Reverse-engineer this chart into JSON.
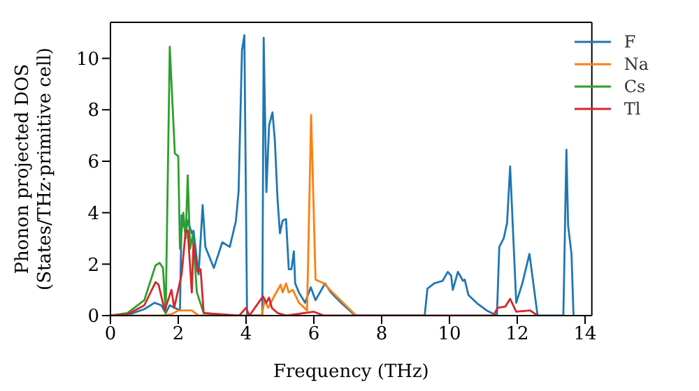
{
  "chart_data": {
    "type": "line",
    "xlabel": "Frequency (THz)",
    "ylabel": "Phonon projected DOS\n(States/THz·primitive cell)",
    "xlim": [
      0,
      14.2
    ],
    "xticks": [
      0,
      2,
      4,
      6,
      8,
      10,
      12,
      14
    ],
    "ylim": [
      0,
      11.4
    ],
    "yticks": [
      0,
      2,
      4,
      6,
      8,
      10
    ],
    "legend": "top right",
    "marker": "none",
    "line_style": "solid",
    "series": [
      {
        "name": "F",
        "color": "#1f77b4",
        "x": [
          0,
          0.5,
          1.0,
          1.3,
          1.5,
          1.63,
          1.75,
          1.9,
          2.05,
          2.1,
          2.22,
          2.28,
          2.4,
          2.45,
          2.6,
          2.72,
          2.8,
          3.05,
          3.3,
          3.52,
          3.7,
          3.78,
          3.88,
          3.95,
          4.03,
          4.48,
          4.52,
          4.6,
          4.68,
          4.78,
          4.85,
          4.93,
          5.0,
          5.08,
          5.18,
          5.26,
          5.34,
          5.41,
          5.45,
          5.56,
          5.74,
          5.91,
          6.05,
          6.33,
          6.5,
          6.8,
          7.22,
          9.27,
          9.35,
          9.55,
          9.8,
          9.95,
          10.05,
          10.1,
          10.25,
          10.4,
          10.45,
          10.56,
          10.84,
          11.1,
          11.4,
          11.47,
          11.6,
          11.7,
          11.79,
          11.97,
          12.15,
          12.36,
          12.6,
          13.36,
          13.45,
          13.5,
          13.6,
          13.66
        ],
        "values": [
          0,
          0.02,
          0.25,
          0.5,
          0.4,
          0.1,
          0.4,
          0.3,
          0.2,
          3.9,
          3.2,
          3.7,
          3.2,
          3.3,
          1.6,
          4.3,
          2.67,
          1.85,
          2.85,
          2.67,
          3.67,
          4.83,
          10.3,
          10.9,
          0,
          0,
          10.8,
          4.8,
          7.4,
          7.9,
          6.8,
          4.5,
          3.2,
          3.7,
          3.75,
          1.8,
          1.8,
          2.5,
          1.25,
          0.9,
          0.5,
          1.1,
          0.6,
          1.25,
          0.9,
          0.5,
          0,
          0,
          1.05,
          1.25,
          1.35,
          1.7,
          1.55,
          1.0,
          1.7,
          1.35,
          1.4,
          0.8,
          0.45,
          0.2,
          0,
          2.67,
          3.0,
          3.6,
          5.8,
          0.5,
          1.25,
          2.4,
          0,
          0,
          6.45,
          3.5,
          2.4,
          0
        ]
      },
      {
        "name": "Na",
        "color": "#ff7f0e",
        "x": [
          0,
          1.5,
          1.8,
          2.0,
          2.4,
          2.6,
          4.46,
          4.55,
          4.65,
          4.85,
          5.02,
          5.08,
          5.18,
          5.26,
          5.38,
          5.56,
          5.8,
          5.92,
          6.05,
          6.3,
          6.55,
          6.9,
          7.25
        ],
        "values": [
          0,
          0,
          0.05,
          0.2,
          0.2,
          0,
          0,
          0.6,
          0.3,
          0.8,
          1.2,
          0.9,
          1.25,
          0.9,
          1.0,
          0.5,
          0.2,
          7.8,
          1.4,
          1.25,
          0.9,
          0.45,
          0
        ]
      },
      {
        "name": "Cs",
        "color": "#2ca02c",
        "x": [
          0,
          0.5,
          1.0,
          1.33,
          1.45,
          1.55,
          1.63,
          1.75,
          1.9,
          2.0,
          2.05,
          2.15,
          2.22,
          2.28,
          2.35,
          2.43,
          2.55,
          2.75,
          3.5
        ],
        "values": [
          0,
          0.1,
          0.6,
          1.95,
          2.05,
          1.85,
          0.1,
          10.45,
          6.3,
          6.2,
          2.6,
          4.0,
          3.0,
          5.45,
          2.6,
          3.15,
          0.9,
          0.1,
          0
        ]
      },
      {
        "name": "Tl",
        "color": "#d62728",
        "x": [
          0,
          0.5,
          1.0,
          1.33,
          1.42,
          1.6,
          1.8,
          1.88,
          2.1,
          2.22,
          2.28,
          2.4,
          2.45,
          2.57,
          2.66,
          2.75,
          3.8,
          4.0,
          4.1,
          4.5,
          4.6,
          4.68,
          4.76,
          4.93,
          5.2,
          6.0,
          6.3,
          11.3,
          11.42,
          11.65,
          11.79,
          11.97,
          12.38,
          12.6
        ],
        "values": [
          0,
          0.05,
          0.4,
          1.3,
          1.2,
          0.2,
          1.0,
          0.3,
          1.6,
          3.3,
          3.3,
          0.9,
          2.8,
          1.7,
          1.8,
          0.1,
          0,
          0.3,
          0,
          0.75,
          0.5,
          0.7,
          0.3,
          0.1,
          0,
          0.15,
          0,
          0,
          0.3,
          0.35,
          0.65,
          0.15,
          0.2,
          0
        ]
      }
    ]
  }
}
